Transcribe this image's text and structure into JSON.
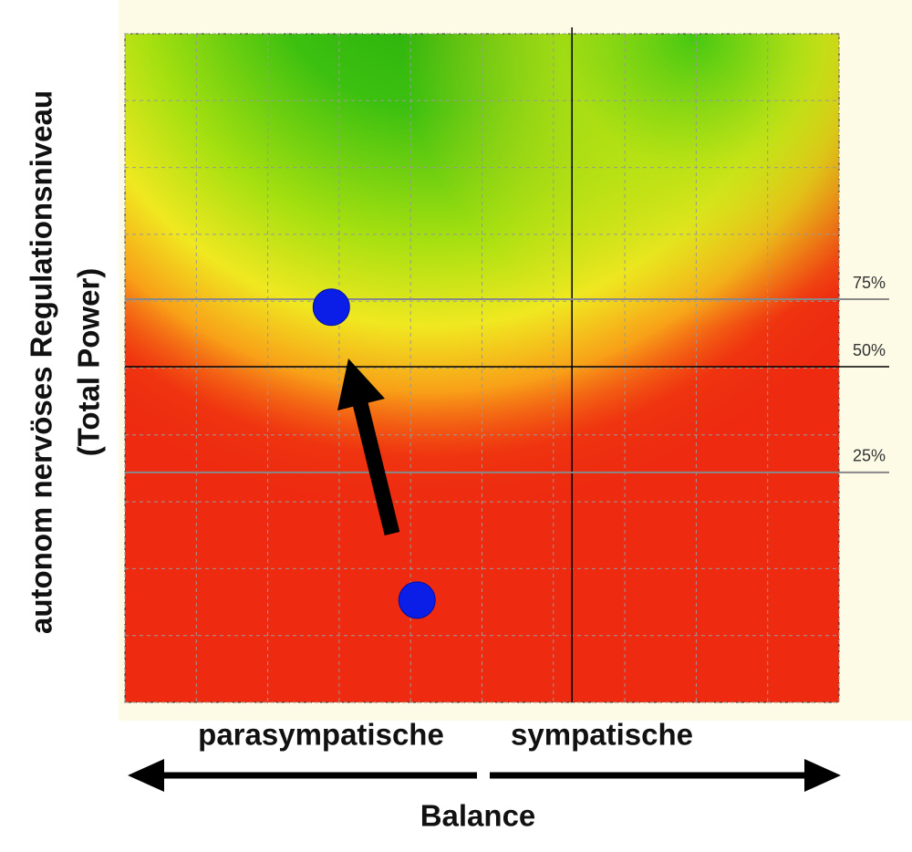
{
  "chart_data": {
    "type": "scatter",
    "ylabel": [
      "autonom nervöses Regulationsniveau",
      "(Total Power)"
    ],
    "x_side_labels": [
      "parasympatische",
      "sympatische"
    ],
    "xlabel": "Balance",
    "xlim": [
      0,
      10
    ],
    "ylim": [
      0,
      10
    ],
    "xticks": [
      0,
      1,
      2,
      3,
      4,
      5,
      6,
      7,
      8,
      9,
      10
    ],
    "yticks": [
      0,
      1,
      2,
      3,
      4,
      5,
      6,
      7,
      8,
      9,
      10
    ],
    "grid": true,
    "center_x": 6.26,
    "percentile_lines": [
      {
        "y": 6.03,
        "label": "75%"
      },
      {
        "y": 5.02,
        "label": "50%"
      },
      {
        "y": 3.44,
        "label": "25%"
      }
    ],
    "x": [
      2.89,
      4.09
    ],
    "series": [
      {
        "color": "#0a1ee8",
        "values": [
          5.91,
          1.53
        ]
      }
    ]
  }
}
